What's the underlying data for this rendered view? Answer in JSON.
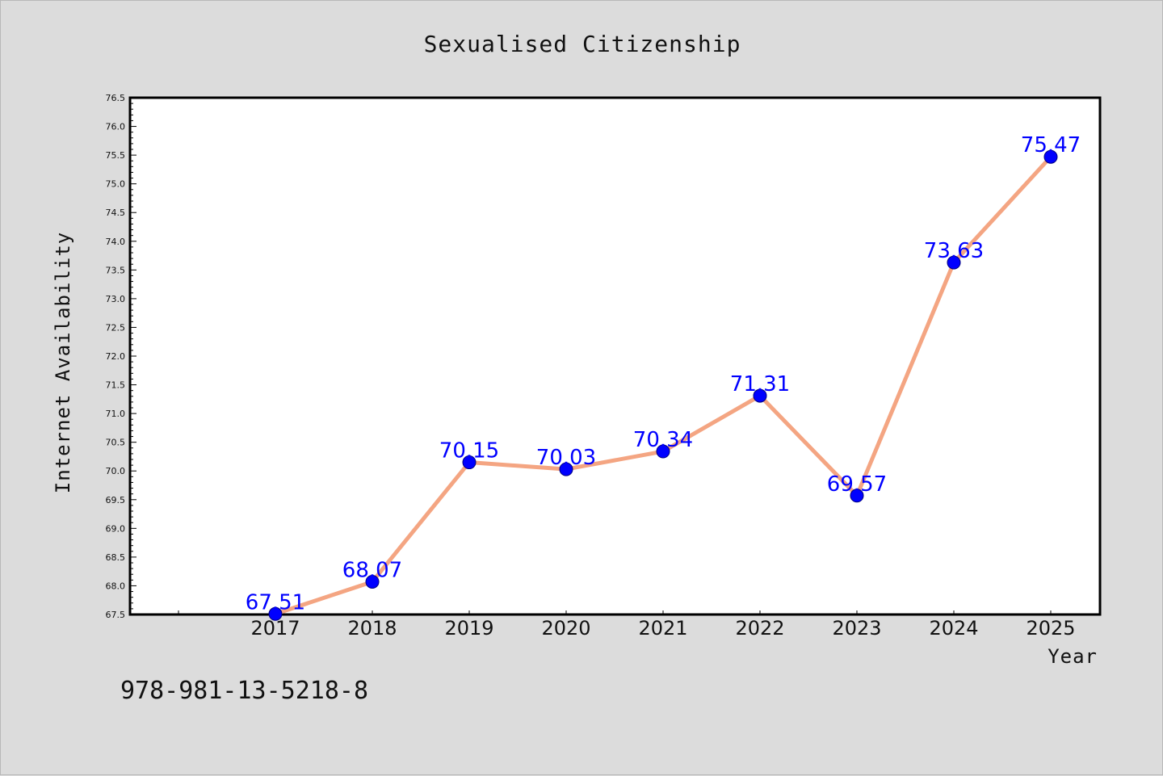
{
  "chart_data": {
    "type": "line",
    "title": "Sexualised Citizenship",
    "xlabel": "Year",
    "ylabel": "Internet Availability",
    "categories": [
      "2017",
      "2018",
      "2019",
      "2020",
      "2021",
      "2022",
      "2023",
      "2024",
      "2025"
    ],
    "series": [
      {
        "values": [
          67.51,
          68.07,
          70.15,
          70.03,
          70.34,
          71.31,
          69.57,
          73.63,
          75.47
        ],
        "data_labels": [
          "67.51",
          "68.07",
          "70.15",
          "70.03",
          "70.34",
          "71.31",
          "69.57",
          "73.63",
          "75.47"
        ],
        "line_color": "#f4a582",
        "marker_color": "#0000ff"
      }
    ],
    "ylim": [
      67.5,
      76.5
    ],
    "yticks": [
      "67.5",
      "68.0",
      "68.5",
      "69.0",
      "69.5",
      "70.0",
      "70.5",
      "71.0",
      "71.5",
      "72.0",
      "72.5",
      "73.0",
      "73.5",
      "74.0",
      "74.5",
      "75.0",
      "75.5",
      "76.0",
      "76.5"
    ],
    "grid": false,
    "legend": "none",
    "label_color": "#0000ff"
  },
  "footnote": "978-981-13-5218-8"
}
